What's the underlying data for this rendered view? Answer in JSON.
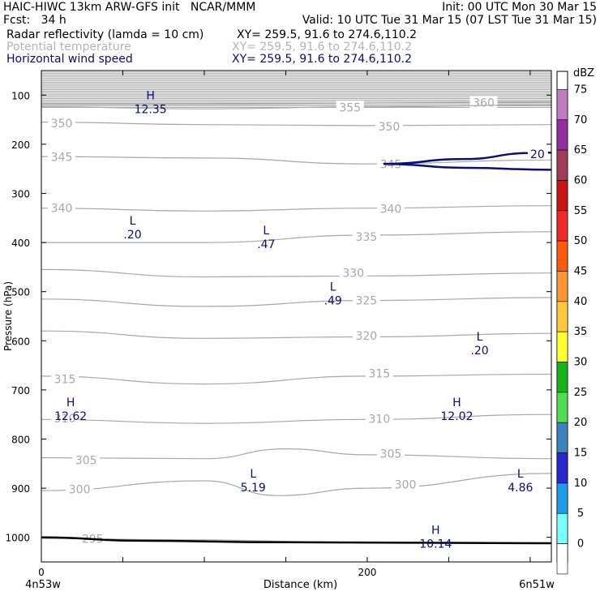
{
  "header": {
    "line1_left": "HAIC-HIWC 13km ARW-GFS init   NCAR/MMM",
    "line1_right": "Init: 00 UTC Mon 30 Mar 15",
    "line2_left": "Fcst:   34 h",
    "line2_right": "Valid: 10 UTC Tue 31 Mar 15 (07 LST Tue 31 Mar 15)",
    "fields": [
      {
        "name": "Radar reflectivity (lamda = 10 cm)",
        "xy": "XY= 259.5, 91.6 to 274.6,110.2",
        "color": "#000000"
      },
      {
        "name": "Potential temperature",
        "xy": "XY= 259.5, 91.6 to 274.6,110.2",
        "color": "#b4b4b4"
      },
      {
        "name": "Horizontal wind speed",
        "xy": "XY= 259.5, 91.6 to 274.6,110.2",
        "color": "#0c0c78"
      }
    ]
  },
  "chart_data": {
    "type": "cross-section contour",
    "xlabel": "Distance (km)",
    "ylabel": "Pressure (hPa)",
    "xlim": [
      0,
      313
    ],
    "ylim": [
      1050,
      50
    ],
    "x_ticks": [
      0,
      50,
      100,
      150,
      200,
      250,
      300
    ],
    "x_tick_labels": [
      "0",
      "",
      "",
      "",
      "200",
      "",
      ""
    ],
    "y_ticks": [
      100,
      200,
      300,
      400,
      500,
      600,
      700,
      800,
      900,
      1000
    ],
    "y_tick_labels": [
      "100",
      "200",
      "300",
      "400",
      "500",
      "600",
      "700",
      "800",
      "900",
      "1000"
    ],
    "x_endpoints": {
      "left": "4n53w",
      "right": "6n51w"
    },
    "theta_contours": [
      {
        "label": "360",
        "points": [
          [
            0,
            118
          ],
          [
            100,
            118
          ],
          [
            200,
            116
          ],
          [
            313,
            114
          ]
        ],
        "labels_at": [
          [
            262,
            115
          ]
        ]
      },
      {
        "label": "355",
        "points": [
          [
            0,
            124
          ],
          [
            100,
            128
          ],
          [
            200,
            124
          ],
          [
            313,
            120
          ]
        ],
        "labels_at": [
          [
            180,
            125
          ]
        ]
      },
      {
        "label": "350",
        "points": [
          [
            0,
            155
          ],
          [
            100,
            160
          ],
          [
            200,
            162
          ],
          [
            313,
            160
          ]
        ],
        "labels_at": [
          [
            3,
            157
          ],
          [
            204,
            164
          ]
        ]
      },
      {
        "label": "345",
        "points": [
          [
            0,
            225
          ],
          [
            100,
            228
          ],
          [
            200,
            240
          ],
          [
            313,
            232
          ]
        ],
        "labels_at": [
          [
            3,
            226
          ],
          [
            205,
            241
          ]
        ]
      },
      {
        "label": "340",
        "points": [
          [
            0,
            330
          ],
          [
            100,
            336
          ],
          [
            200,
            330
          ],
          [
            313,
            325
          ]
        ],
        "labels_at": [
          [
            3,
            330
          ],
          [
            205,
            331
          ]
        ]
      },
      {
        "label": "335",
        "points": [
          [
            0,
            400
          ],
          [
            100,
            400
          ],
          [
            200,
            385
          ],
          [
            313,
            378
          ]
        ],
        "labels_at": [
          [
            190,
            388
          ]
        ]
      },
      {
        "label": "330",
        "points": [
          [
            0,
            455
          ],
          [
            100,
            470
          ],
          [
            200,
            468
          ],
          [
            313,
            462
          ]
        ],
        "labels_at": [
          [
            182,
            462
          ]
        ]
      },
      {
        "label": "325",
        "points": [
          [
            0,
            515
          ],
          [
            100,
            530
          ],
          [
            200,
            518
          ],
          [
            313,
            512
          ]
        ],
        "labels_at": [
          [
            190,
            518
          ]
        ]
      },
      {
        "label": "320",
        "points": [
          [
            0,
            580
          ],
          [
            100,
            595
          ],
          [
            200,
            592
          ],
          [
            313,
            585
          ]
        ],
        "labels_at": [
          [
            190,
            590
          ]
        ]
      },
      {
        "label": "315",
        "points": [
          [
            0,
            672
          ],
          [
            100,
            688
          ],
          [
            200,
            672
          ],
          [
            313,
            668
          ]
        ],
        "labels_at": [
          [
            5,
            678
          ],
          [
            198,
            666
          ]
        ]
      },
      {
        "label": "310",
        "points": [
          [
            0,
            760
          ],
          [
            100,
            768
          ],
          [
            200,
            760
          ],
          [
            313,
            750
          ]
        ],
        "labels_at": [
          [
            5,
            758
          ],
          [
            198,
            759
          ]
        ]
      },
      {
        "label": "305",
        "points": [
          [
            0,
            838
          ],
          [
            100,
            840
          ],
          [
            150,
            820
          ],
          [
            200,
            832
          ],
          [
            313,
            840
          ]
        ],
        "labels_at": [
          [
            18,
            843
          ],
          [
            205,
            830
          ]
        ]
      },
      {
        "label": "300",
        "points": [
          [
            0,
            905
          ],
          [
            100,
            885
          ],
          [
            145,
            915
          ],
          [
            200,
            900
          ],
          [
            313,
            870
          ]
        ],
        "labels_at": [
          [
            14,
            902
          ],
          [
            214,
            892
          ]
        ]
      },
      {
        "label": "295",
        "points": [
          [
            0,
            1002
          ],
          [
            80,
            1005
          ],
          [
            200,
            1010
          ],
          [
            313,
            1012
          ]
        ],
        "labels_at": [
          [
            22,
            1003
          ]
        ]
      }
    ],
    "wind_contours": [
      {
        "label": "20",
        "points": [
          [
            210,
            240
          ],
          [
            260,
            230
          ],
          [
            300,
            218
          ],
          [
            313,
            217
          ]
        ],
        "labels_at": [
          [
            300,
            220
          ]
        ]
      },
      {
        "label": "",
        "points": [
          [
            210,
            240
          ],
          [
            260,
            248
          ],
          [
            313,
            252
          ]
        ],
        "labels_at": []
      }
    ],
    "terrain": {
      "points": [
        [
          0,
          1000
        ],
        [
          60,
          1007
        ],
        [
          150,
          1010
        ],
        [
          313,
          1012
        ]
      ]
    },
    "extrema": [
      {
        "type": "H",
        "value": "12.35",
        "x": 67,
        "y": 115
      },
      {
        "type": "L",
        "value": ".20",
        "x": 56,
        "y": 370
      },
      {
        "type": "L",
        "value": ".47",
        "x": 138,
        "y": 390
      },
      {
        "type": "L",
        "value": ".49",
        "x": 179,
        "y": 505
      },
      {
        "type": "L",
        "value": ".20",
        "x": 269,
        "y": 606
      },
      {
        "type": "H",
        "value": "12.62",
        "x": 18,
        "y": 740
      },
      {
        "type": "H",
        "value": "12.02",
        "x": 255,
        "y": 740
      },
      {
        "type": "L",
        "value": "5.19",
        "x": 130,
        "y": 885
      },
      {
        "type": "L",
        "value": "4.86",
        "x": 294,
        "y": 885
      },
      {
        "type": "H",
        "value": "10.14",
        "x": 242,
        "y": 1000
      }
    ],
    "shaded_top": [
      50,
      125
    ]
  },
  "colorbar": {
    "unit": "dBZ",
    "levels": [
      "75",
      "70",
      "65",
      "60",
      "55",
      "50",
      "45",
      "40",
      "35",
      "30",
      "25",
      "20",
      "15",
      "10",
      "5",
      "0"
    ],
    "colors": [
      "#c07cc0",
      "#9030a0",
      "#a03c5a",
      "#c81414",
      "#f02828",
      "#ff5a0a",
      "#ff9632",
      "#ffc83c",
      "#ffff32",
      "#14b414",
      "#50dc50",
      "#3c82be",
      "#2828d2",
      "#1e9be6",
      "#78ffff",
      "#ffffff"
    ]
  }
}
